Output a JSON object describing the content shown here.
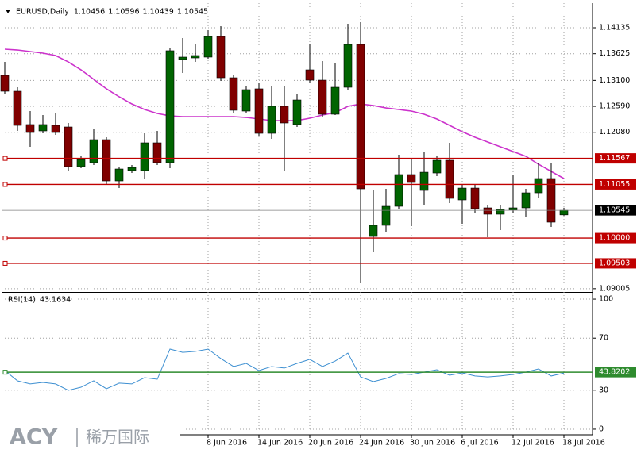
{
  "chart_data": [
    {
      "type": "candlestick",
      "title": "EURUSD,Daily",
      "categories": [
        null,
        null,
        null,
        null,
        null,
        null,
        null,
        null,
        null,
        null,
        null,
        null,
        null,
        null,
        null,
        null,
        "8 Jun 2016",
        null,
        null,
        null,
        "14 Jun 2016",
        null,
        null,
        null,
        "20 Jun 2016",
        null,
        null,
        null,
        "24 Jun 2016",
        null,
        null,
        null,
        "30 Jun 2016",
        null,
        null,
        null,
        "6 Jul 2016",
        null,
        null,
        null,
        "12 Jul 2016",
        null,
        null,
        null,
        "18 Jul 2016"
      ],
      "open": [
        1.13199,
        1.12887,
        1.12232,
        1.12107,
        1.12216,
        1.12185,
        1.11405,
        1.11483,
        1.11935,
        1.11124,
        1.11327,
        1.11327,
        1.11873,
        1.11483,
        1.13511,
        1.13542,
        1.13558,
        1.13963,
        1.13152,
        1.12497,
        1.12934,
        1.1206,
        1.12591,
        1.12232,
        1.13308,
        1.13105,
        1.12435,
        1.12965,
        1.13807,
        1.10032,
        1.10251,
        1.10625,
        1.11249,
        1.10937,
        1.1128,
        1.1153,
        1.1075,
        1.10983,
        1.10594,
        1.10469,
        1.10547,
        1.10594,
        1.1089,
        1.11171,
        1.10456
      ],
      "high": [
        1.13464,
        1.12965,
        1.12497,
        1.12419,
        1.1245,
        1.12263,
        1.11623,
        1.12154,
        1.11982,
        1.11405,
        1.11436,
        1.1206,
        1.12107,
        1.13745,
        1.13932,
        1.13823,
        1.14088,
        1.14166,
        1.13199,
        1.12996,
        1.13043,
        1.12996,
        1.12996,
        1.1284,
        1.13823,
        1.1348,
        1.13433,
        1.14213,
        1.14244,
        1.10937,
        1.10968,
        1.11639,
        1.11561,
        1.11686,
        1.11623,
        1.11873,
        1.11046,
        1.11046,
        1.10656,
        1.10656,
        1.11249,
        1.10968,
        1.11483,
        1.11483,
        1.10596
      ],
      "low": [
        1.1284,
        1.12107,
        1.11795,
        1.1206,
        1.12029,
        1.11327,
        1.11373,
        1.11436,
        1.11061,
        1.10983,
        1.1128,
        1.11171,
        1.11436,
        1.11373,
        1.13246,
        1.13464,
        1.13527,
        1.1309,
        1.12466,
        1.1245,
        1.11998,
        1.11951,
        1.11311,
        1.12185,
        1.13059,
        1.12388,
        1.12419,
        1.12918,
        1.09112,
        1.0972,
        1.10126,
        1.10563,
        1.10235,
        1.10656,
        1.11217,
        1.10687,
        1.10282,
        1.105,
        1.10017,
        1.10157,
        1.105,
        1.10422,
        1.10797,
        1.10219,
        1.10439
      ],
      "close": [
        1.12887,
        1.12216,
        1.12076,
        1.12232,
        1.12076,
        1.11405,
        1.11545,
        1.11935,
        1.11124,
        1.11358,
        1.11389,
        1.11873,
        1.11483,
        1.13683,
        1.13558,
        1.13589,
        1.13963,
        1.13152,
        1.12513,
        1.12918,
        1.1206,
        1.12591,
        1.12263,
        1.12715,
        1.13105,
        1.12435,
        1.12965,
        1.13807,
        1.10968,
        1.10251,
        1.10625,
        1.11249,
        1.11093,
        1.11295,
        1.1153,
        1.10781,
        1.10983,
        1.10578,
        1.10469,
        1.10563,
        1.10594,
        1.1089,
        1.11171,
        1.10313,
        1.10545
      ],
      "up_color": "#006400",
      "down_color": "#800000",
      "overlays": [
        {
          "color": "#cc33cc",
          "values": [
            1.13714,
            1.13698,
            1.13667,
            1.13636,
            1.13589,
            1.13464,
            1.13308,
            1.13121,
            1.12934,
            1.12778,
            1.12637,
            1.12528,
            1.1245,
            1.12403,
            1.12388,
            1.12388,
            1.12388,
            1.12388,
            1.12388,
            1.12372,
            1.12341,
            1.1231,
            1.1231,
            1.1231,
            1.12357,
            1.12419,
            1.12466,
            1.12591,
            1.12637,
            1.12606,
            1.12559,
            1.12528,
            1.12497,
            1.12435,
            1.12341,
            1.12216,
            1.12091,
            1.11982,
            1.11889,
            1.11795,
            1.11701,
            1.11608,
            1.11452,
            1.11311,
            1.11171
          ]
        }
      ],
      "levels": [
        1.11567,
        1.11055,
        {
          "value": 1.1,
          "label": "1.10000"
        },
        1.09503
      ],
      "level_color": "#c00000",
      "ylim": [
        1.08956,
        1.14525
      ],
      "yticks": [
        1.14135,
        1.13625,
        {
          "value": 1.131,
          "label": "1.13100"
        },
        {
          "value": 1.1259,
          "label": "1.12590"
        },
        {
          "value": 1.1208,
          "label": "1.12080"
        },
        1.09005
      ],
      "grid": true
    },
    {
      "type": "line",
      "title": "RSI(14)",
      "color": "#3d8fd1",
      "values": [
        45.1,
        37.2,
        34.8,
        36.0,
        34.8,
        29.9,
        32.3,
        37.2,
        31.1,
        35.4,
        34.8,
        39.6,
        38.4,
        61.6,
        59.1,
        59.8,
        61.6,
        54.3,
        48.2,
        50.6,
        45.1,
        48.2,
        47.0,
        50.6,
        53.7,
        48.2,
        52.4,
        58.5,
        40.2,
        36.6,
        39.0,
        42.7,
        42.1,
        43.9,
        45.7,
        41.5,
        43.3,
        40.9,
        40.2,
        40.9,
        42.1,
        43.9,
        46.3,
        40.9,
        43.1634
      ],
      "levels": [
        43.8202
      ],
      "level_color": "#2e8b2e",
      "ylim": [
        -4.3,
        104.3
      ],
      "yticks": [
        100,
        70,
        30,
        0
      ],
      "grid": true
    }
  ],
  "watermark": {
    "brand": "ACY",
    "name": "稀万国际"
  }
}
